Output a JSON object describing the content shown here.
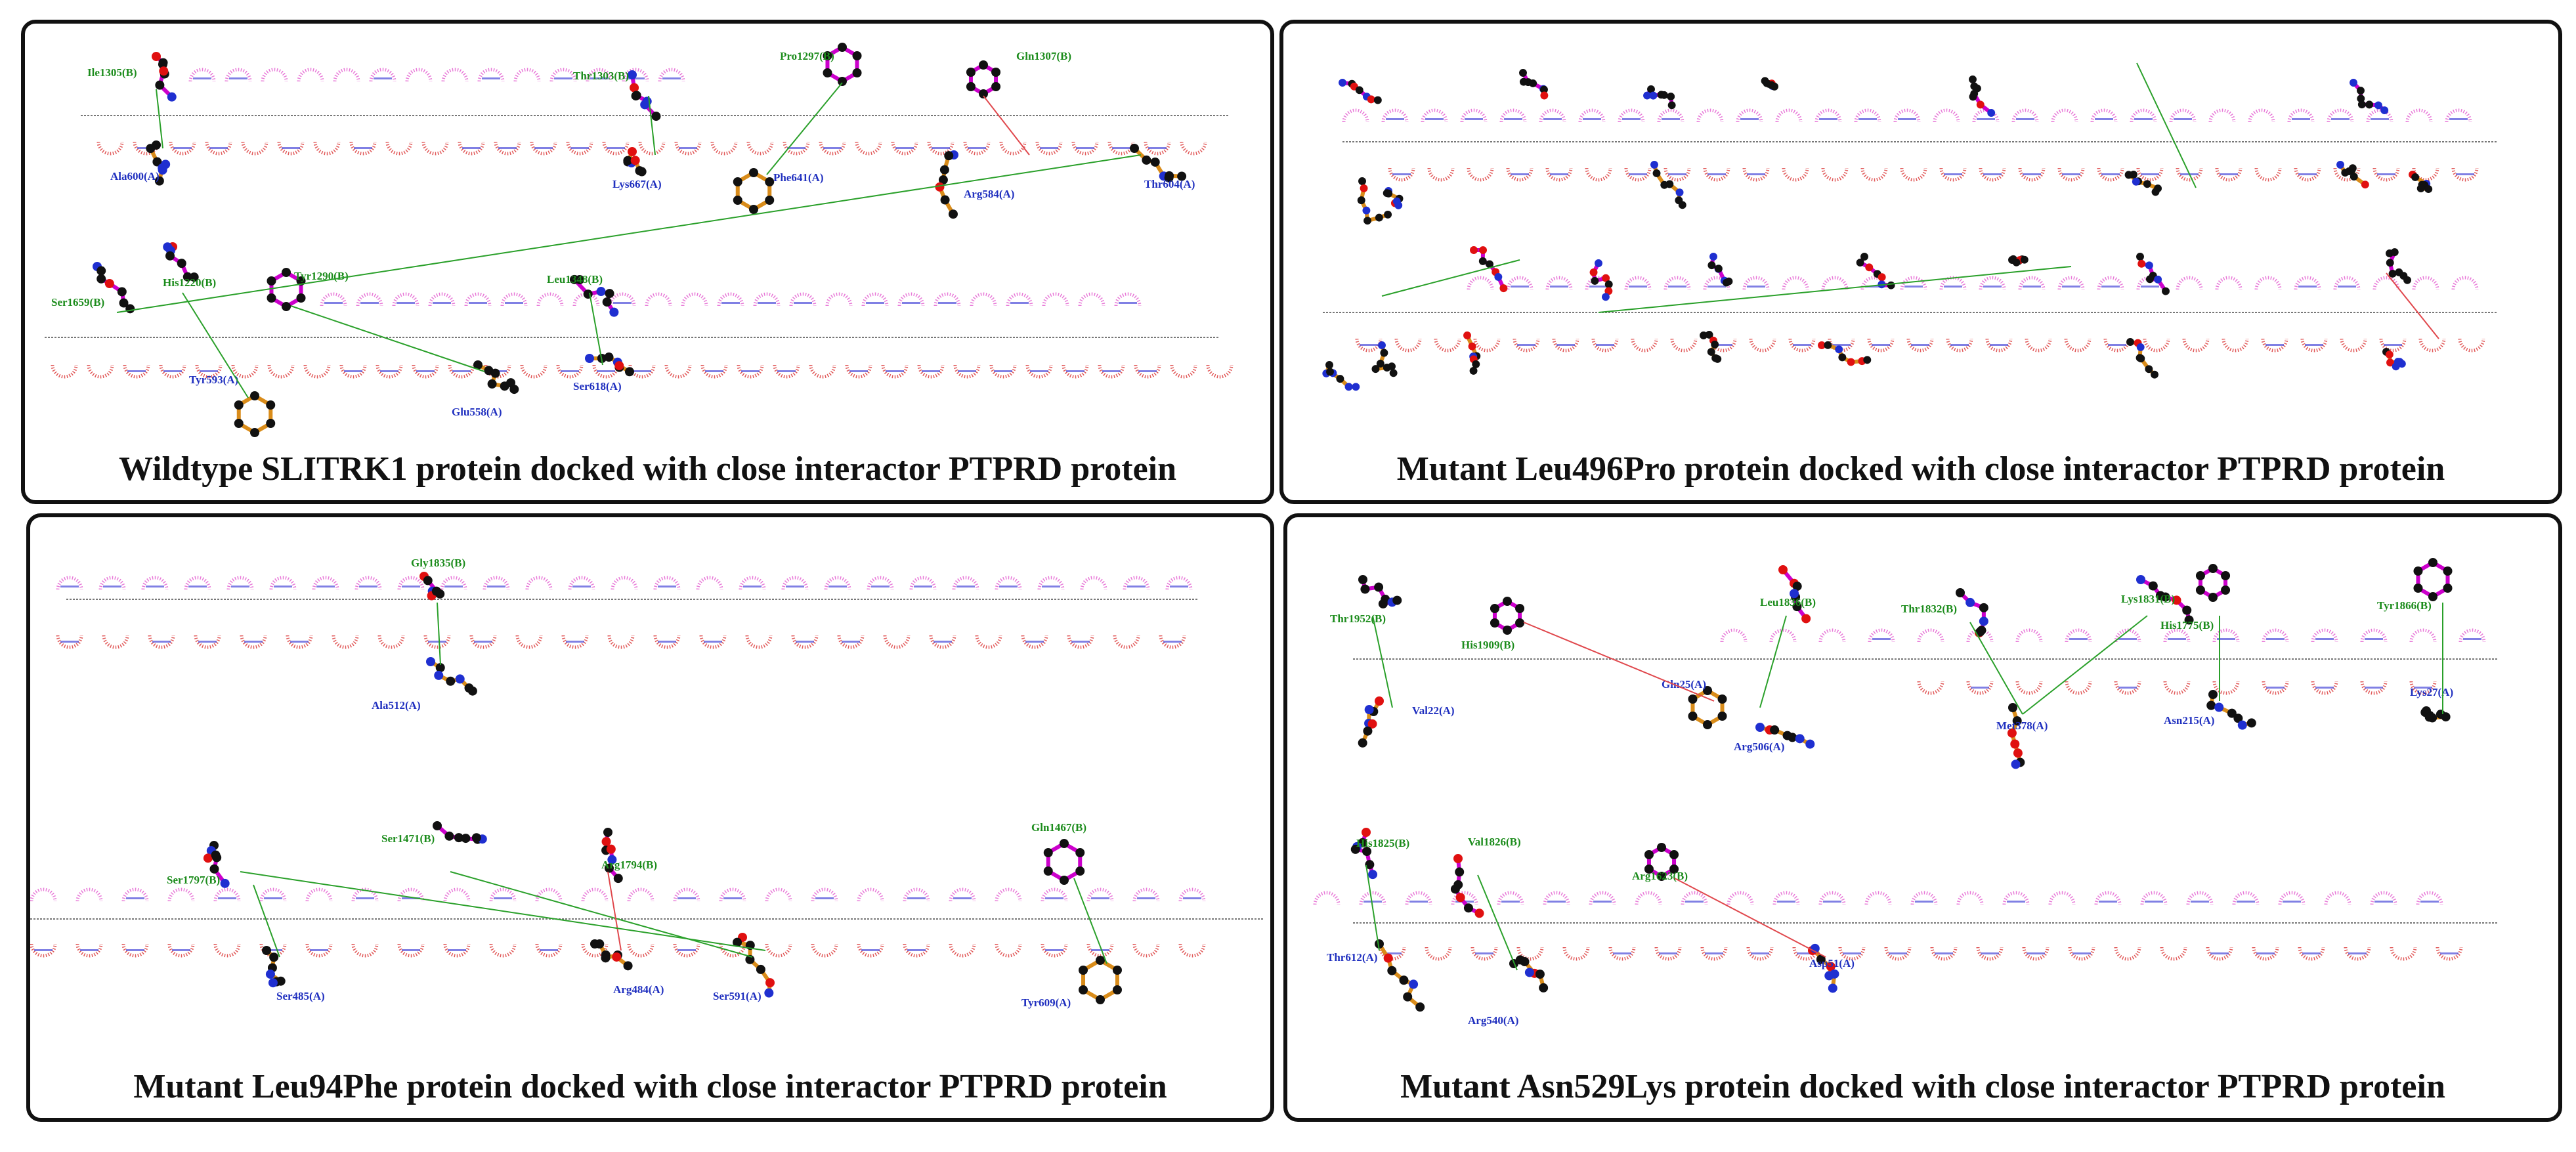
{
  "colors": {
    "frame": "#111111",
    "chain_b_label": "#1c8c1c",
    "chain_a_label": "#1f2fbf",
    "hbond": "#2aa02a",
    "salt_bridge": "#e0474c",
    "hydrophobic_arc": "#e15a5a",
    "hydrophobic_arc_b": "#e87ad8",
    "bond_b": "#cc00cc",
    "bond_a": "#d98c1a",
    "atom_c": "#111111",
    "atom_n": "#1f2fd0",
    "atom_o": "#e01010",
    "atom_s": "#d4c21a",
    "interface_line": "#777777"
  },
  "panels": [
    {
      "id": "wildtype",
      "caption": "Wildtype SLITRK1 protein docked with close interactor PTPRD protein",
      "chain_b_residues": [
        "Ile1305(B)",
        "Thr1303(B)",
        "Pro1297(B)",
        "Gln1307(B)",
        "Ser1659(B)",
        "His1220(B)",
        "Tyr1290(B)",
        "Leu1348(B)"
      ],
      "chain_a_residues": [
        "Ala600(A)",
        "Lys667(A)",
        "Phe641(A)",
        "Arg584(A)",
        "Thr604(A)",
        "Tyr593(A)",
        "Glu558(A)",
        "Ser618(A)"
      ]
    },
    {
      "id": "leu496pro",
      "caption": "Mutant Leu496Pro protein docked with close interactor PTPRD protein",
      "chain_b_residues": [],
      "chain_a_residues": []
    },
    {
      "id": "leu94phe",
      "caption": "Mutant Leu94Phe protein docked with close interactor PTPRD protein",
      "chain_b_residues": [
        "Gly1835(B)",
        "Ser1797(B)",
        "Ser1471(B)",
        "Arg1794(B)",
        "Gln1467(B)"
      ],
      "chain_a_residues": [
        "Ala512(A)",
        "Ser485(A)",
        "Arg484(A)",
        "Ser591(A)",
        "Tyr609(A)"
      ]
    },
    {
      "id": "asn529lys",
      "caption": "Mutant Asn529Lys protein docked with close interactor PTPRD protein",
      "chain_b_residues": [
        "Thr1952(B)",
        "His1909(B)",
        "Leu1836(B)",
        "Thr1832(B)",
        "Lys1831(B)",
        "His1775(B)",
        "Tyr1866(B)",
        "His1825(B)",
        "Val1826(B)",
        "Arg1623(B)"
      ],
      "chain_a_residues": [
        "Val22(A)",
        "Gln25(A)",
        "Arg506(A)",
        "Met378(A)",
        "Asn215(A)",
        "Lys27(A)",
        "Thr612(A)",
        "Arg540(A)",
        "Asp51(A)"
      ]
    }
  ]
}
